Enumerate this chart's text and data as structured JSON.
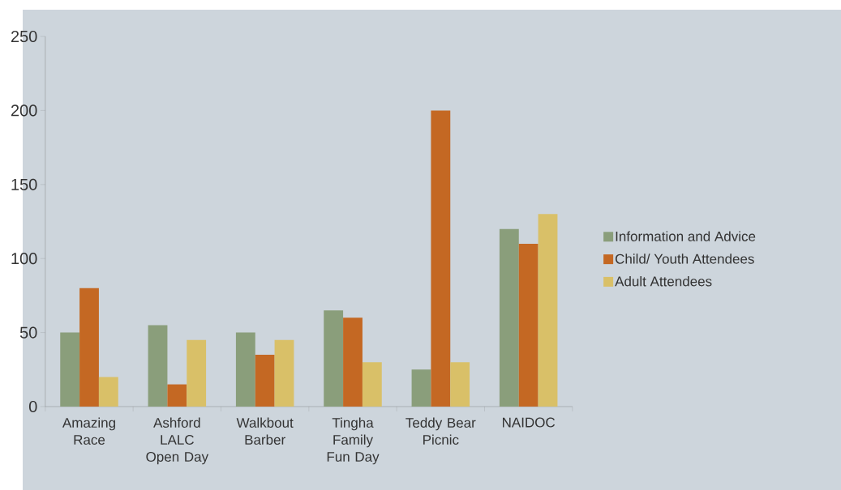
{
  "chart_data": {
    "type": "bar",
    "categories": [
      "Amazing Race",
      "Ashford LALC Open Day",
      "Walkbout Barber",
      "Tingha Family Fun Day",
      "Teddy Bear Picnic",
      "NAIDOC"
    ],
    "series": [
      {
        "name": "Information and Advice",
        "color": "#8a9e7b",
        "values": [
          50,
          55,
          50,
          65,
          25,
          120
        ]
      },
      {
        "name": "Child/ Youth Attendees",
        "color": "#c46823",
        "values": [
          80,
          15,
          35,
          60,
          200,
          110
        ]
      },
      {
        "name": "Adult Attendees",
        "color": "#d9c068",
        "values": [
          20,
          45,
          45,
          30,
          30,
          130
        ]
      }
    ],
    "ylim": [
      0,
      250
    ],
    "yticks": [
      0,
      50,
      100,
      150,
      200,
      250
    ],
    "legend": "right"
  }
}
